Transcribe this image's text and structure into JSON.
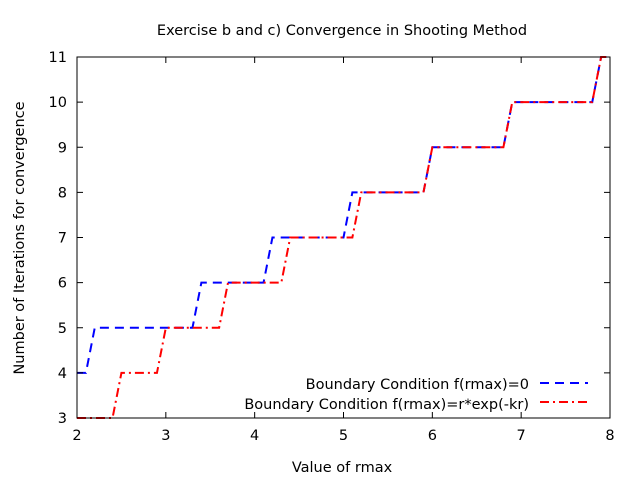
{
  "chart_data": {
    "type": "line",
    "title": "Exercise b and c) Convergence in Shooting Method",
    "xlabel": "Value of rmax",
    "ylabel": "Number of Iterations for convergence",
    "xlim": [
      2,
      8
    ],
    "ylim": [
      3,
      11
    ],
    "x_ticks": [
      2,
      3,
      4,
      5,
      6,
      7,
      8
    ],
    "y_ticks": [
      3,
      4,
      5,
      6,
      7,
      8,
      9,
      10,
      11
    ],
    "grid": false,
    "legend_position": "bottom-right",
    "series": [
      {
        "name": "Boundary Condition f(rmax)=0",
        "color": "#0000ff",
        "style": "dashed",
        "x": [
          2.0,
          2.1,
          2.2,
          2.3,
          2.4,
          2.5,
          2.6,
          2.7,
          2.8,
          2.9,
          3.0,
          3.1,
          3.2,
          3.3,
          3.4,
          3.5,
          3.6,
          3.7,
          3.8,
          3.9,
          4.0,
          4.1,
          4.2,
          4.3,
          4.4,
          4.5,
          4.6,
          4.7,
          4.8,
          4.9,
          5.0,
          5.1,
          5.2,
          5.3,
          5.4,
          5.5,
          5.6,
          5.7,
          5.8,
          5.9,
          6.0,
          6.1,
          6.2,
          6.3,
          6.4,
          6.5,
          6.6,
          6.7,
          6.8,
          6.9,
          7.0,
          7.1,
          7.2,
          7.3,
          7.4,
          7.5,
          7.6,
          7.7,
          7.8,
          7.9,
          8.0
        ],
        "values": [
          4,
          4,
          5,
          5,
          5,
          5,
          5,
          5,
          5,
          5,
          5,
          5,
          5,
          5,
          6,
          6,
          6,
          6,
          6,
          6,
          6,
          6,
          7,
          7,
          7,
          7,
          7,
          7,
          7,
          7,
          7,
          8,
          8,
          8,
          8,
          8,
          8,
          8,
          8,
          8,
          9,
          9,
          9,
          9,
          9,
          9,
          9,
          9,
          9,
          10,
          10,
          10,
          10,
          10,
          10,
          10,
          10,
          10,
          10,
          11,
          11
        ]
      },
      {
        "name": "Boundary Condition f(rmax)=r*exp(-kr)",
        "color": "#ff0000",
        "style": "dash-dot",
        "x": [
          2.0,
          2.1,
          2.2,
          2.3,
          2.4,
          2.5,
          2.6,
          2.7,
          2.8,
          2.9,
          3.0,
          3.1,
          3.2,
          3.3,
          3.4,
          3.5,
          3.6,
          3.7,
          3.8,
          3.9,
          4.0,
          4.1,
          4.2,
          4.3,
          4.4,
          4.5,
          4.6,
          4.7,
          4.8,
          4.9,
          5.0,
          5.1,
          5.2,
          5.3,
          5.4,
          5.5,
          5.6,
          5.7,
          5.8,
          5.9,
          6.0,
          6.1,
          6.2,
          6.3,
          6.4,
          6.5,
          6.6,
          6.7,
          6.8,
          6.9,
          7.0,
          7.1,
          7.2,
          7.3,
          7.4,
          7.5,
          7.6,
          7.7,
          7.8,
          7.9,
          8.0
        ],
        "values": [
          3,
          3,
          3,
          3,
          3,
          4,
          4,
          4,
          4,
          4,
          5,
          5,
          5,
          5,
          5,
          5,
          5,
          6,
          6,
          6,
          6,
          6,
          6,
          6,
          7,
          7,
          7,
          7,
          7,
          7,
          7,
          7,
          8,
          8,
          8,
          8,
          8,
          8,
          8,
          8,
          9,
          9,
          9,
          9,
          9,
          9,
          9,
          9,
          9,
          10,
          10,
          10,
          10,
          10,
          10,
          10,
          10,
          10,
          10,
          11,
          11
        ]
      }
    ]
  }
}
